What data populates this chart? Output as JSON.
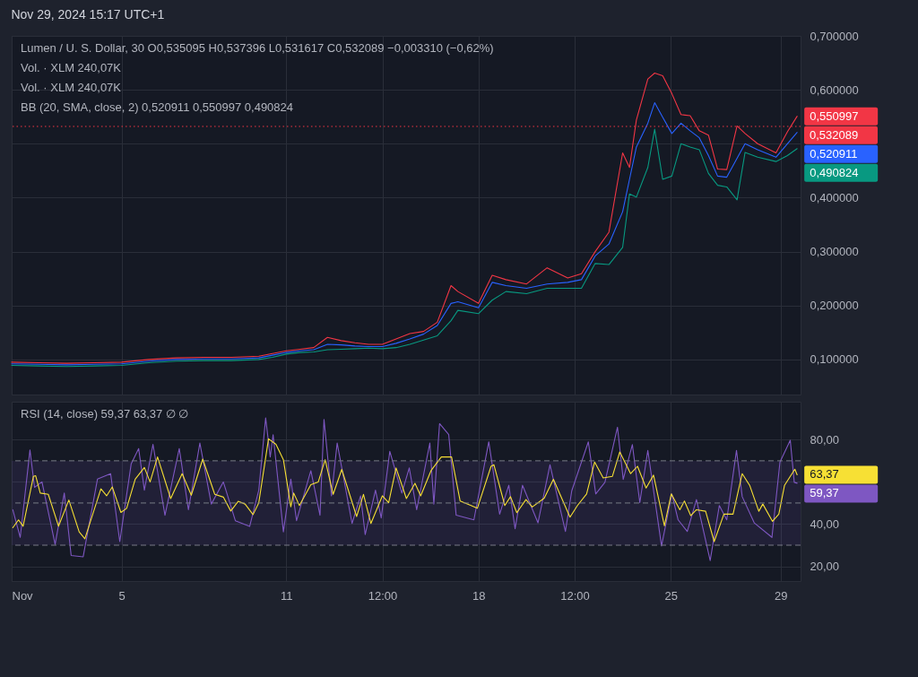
{
  "chart_data": [
    {
      "type": "line",
      "title": "Nov 29, 2024 15:17 UTC+1",
      "annotations": [
        "Lumen / U. S. Dollar, 30  O0,535095  H0,537396  L0,531617  C0,532089  −0,003310 (−0,62%)",
        "Vol. · XLM  240,07K",
        "Vol. · XLM  240,07K",
        "BB (20, SMA, close, 2)  0,520911  0,550997  0,490824",
        {
          "text": "0,550997",
          "x": "2024-11-29T14:30",
          "y": 0.550997
        },
        {
          "text": "0,520911",
          "x": "2024-11-29T14:30",
          "y": 0.520911
        },
        {
          "text": "0,490824",
          "x": "2024-11-29T14:30",
          "y": 0.490824
        }
      ],
      "x": [
        "2024-11-01T00:00",
        "2024-11-02T00:00",
        "2024-11-03T00:00",
        "2024-11-04T00:00",
        "2024-11-05T00:00",
        "2024-11-06T00:00",
        "2024-11-07T00:00",
        "2024-11-08T00:00",
        "2024-11-09T00:00",
        "2024-11-10T00:00",
        "2024-11-10T12:00",
        "2024-11-11T00:00",
        "2024-11-11T12:00",
        "2024-11-12T00:00",
        "2024-11-12T12:00",
        "2024-11-13T00:00",
        "2024-11-13T12:00",
        "2024-11-14T00:00",
        "2024-11-14T12:00",
        "2024-11-15T00:00",
        "2024-11-15T12:00",
        "2024-11-16T00:00",
        "2024-11-16T12:00",
        "2024-11-17T00:00",
        "2024-11-17T06:00",
        "2024-11-18T00:00",
        "2024-11-18T12:00",
        "2024-11-19T00:00",
        "2024-11-19T18:00",
        "2024-11-20T12:00",
        "2024-11-21T06:00",
        "2024-11-21T18:00",
        "2024-11-22T06:00",
        "2024-11-22T18:00",
        "2024-11-23T06:00",
        "2024-11-23T12:00",
        "2024-11-23T18:00",
        "2024-11-24T04:00",
        "2024-11-24T10:00",
        "2024-11-24T17:00",
        "2024-11-25T01:00",
        "2024-11-25T09:00",
        "2024-11-25T17:00",
        "2024-11-26T01:00",
        "2024-11-26T09:00",
        "2024-11-26T17:00",
        "2024-11-27T01:00",
        "2024-11-27T10:00",
        "2024-11-27T17:00",
        "2024-11-28T04:00",
        "2024-11-28T20:00",
        "2024-11-29T06:00",
        "2024-11-29T14:30"
      ],
      "series": [
        {
          "color": "#2962ff",
          "values": [
            0.092,
            0.091,
            0.09,
            0.091,
            0.092,
            0.097,
            0.1,
            0.101,
            0.101,
            0.103,
            0.108,
            0.113,
            0.116,
            0.118,
            0.128,
            0.127,
            0.125,
            0.124,
            0.124,
            0.13,
            0.138,
            0.147,
            0.163,
            0.204,
            0.207,
            0.196,
            0.243,
            0.237,
            0.232,
            0.24,
            0.243,
            0.248,
            0.292,
            0.314,
            0.374,
            0.434,
            0.494,
            0.538,
            0.576,
            0.549,
            0.519,
            0.538,
            0.524,
            0.511,
            0.478,
            0.44,
            0.438,
            0.473,
            0.5,
            0.489,
            0.475,
            0.5,
            0.520911
          ]
        },
        {
          "color": "#f23645",
          "values": [
            0.095,
            0.094,
            0.093,
            0.094,
            0.095,
            0.1,
            0.103,
            0.104,
            0.104,
            0.106,
            0.111,
            0.116,
            0.119,
            0.122,
            0.141,
            0.135,
            0.131,
            0.128,
            0.128,
            0.138,
            0.148,
            0.152,
            0.169,
            0.237,
            0.226,
            0.204,
            0.256,
            0.248,
            0.24,
            0.27,
            0.251,
            0.259,
            0.3,
            0.336,
            0.483,
            0.456,
            0.544,
            0.62,
            0.631,
            0.626,
            0.593,
            0.554,
            0.552,
            0.524,
            0.516,
            0.453,
            0.452,
            0.533,
            0.519,
            0.5,
            0.483,
            0.522,
            0.550997
          ]
        },
        {
          "color": "#089981",
          "values": [
            0.089,
            0.088,
            0.087,
            0.088,
            0.089,
            0.094,
            0.097,
            0.098,
            0.098,
            0.1,
            0.104,
            0.11,
            0.113,
            0.114,
            0.118,
            0.119,
            0.12,
            0.121,
            0.12,
            0.122,
            0.128,
            0.136,
            0.144,
            0.172,
            0.191,
            0.185,
            0.21,
            0.226,
            0.222,
            0.232,
            0.232,
            0.232,
            0.278,
            0.276,
            0.308,
            0.407,
            0.401,
            0.456,
            0.527,
            0.434,
            0.44,
            0.5,
            0.494,
            0.489,
            0.445,
            0.423,
            0.42,
            0.396,
            0.484,
            0.475,
            0.467,
            0.478,
            0.490824
          ]
        }
      ],
      "ref_lines": [
        {
          "axis": "y",
          "value": 0.532089,
          "label": "0,532089",
          "color": "#f23645",
          "line_style": "dotted"
        }
      ],
      "xlim": [
        "2024-11-01T00:00",
        "2024-11-29T17:30"
      ],
      "xticks": [
        {
          "value": "2024-11-01T00:00",
          "label": null
        },
        {
          "value": "2024-11-05T00:00",
          "label": null
        },
        {
          "value": "2024-11-11T00:00",
          "label": null
        },
        {
          "value": "2024-11-14T12:00",
          "label": null
        },
        {
          "value": "2024-11-18T00:00",
          "label": null
        },
        {
          "value": "2024-11-21T12:00",
          "label": null
        },
        {
          "value": "2024-11-25T00:00",
          "label": null
        },
        {
          "value": "2024-11-29T00:00",
          "label": null
        }
      ],
      "ylim": [
        0.035,
        0.7
      ],
      "yticks": [
        {
          "value": 0.1,
          "label": "0,100000"
        },
        {
          "value": 0.2,
          "label": "0,200000"
        },
        {
          "value": 0.3,
          "label": "0,300000"
        },
        {
          "value": 0.4,
          "label": "0,400000"
        },
        {
          "value": 0.5,
          "label": null
        },
        {
          "value": 0.6,
          "label": "0,600000"
        },
        {
          "value": 0.7,
          "label": "0,700000"
        }
      ],
      "grid": true,
      "tick_labels": "y"
    },
    {
      "type": "line",
      "annotations": [
        "RSI (14, close)  59,37  63,37  ∅  ∅",
        {
          "text": "63,37",
          "x": "2024-11-29T14:30",
          "y": 63.37
        },
        {
          "text": "59,37",
          "x": "2024-11-29T14:30",
          "y": 59.37
        }
      ],
      "series": [
        {
          "color": "#7e57c2",
          "x": [
            "2024-11-01T01:00",
            "2024-11-01T07:30",
            "2024-11-01T16:00",
            "2024-11-01T20:00",
            "2024-11-02T02:30",
            "2024-11-02T14:00",
            "2024-11-02T22:00",
            "2024-11-03T04:00",
            "2024-11-03T14:30",
            "2024-11-04T03:00",
            "2024-11-04T14:30",
            "2024-11-04T22:30",
            "2024-11-05T08:30",
            "2024-11-05T15:00",
            "2024-11-05T20:00",
            "2024-11-06T03:30",
            "2024-11-06T14:00",
            "2024-11-07T02:30",
            "2024-11-07T10:30",
            "2024-11-07T20:30",
            "2024-11-08T06:30",
            "2024-11-08T17:00",
            "2024-11-09T03:30",
            "2024-11-09T16:00",
            "2024-11-10T00:00",
            "2024-11-10T06:00",
            "2024-11-10T10:00",
            "2024-11-10T12:30",
            "2024-11-10T21:30",
            "2024-11-11T04:00",
            "2024-11-11T09:00",
            "2024-11-11T21:30",
            "2024-11-12T05:30",
            "2024-11-12T09:00",
            "2024-11-12T15:30",
            "2024-11-12T20:30",
            "2024-11-13T09:30",
            "2024-11-13T17:00",
            "2024-11-13T21:00",
            "2024-11-14T06:00",
            "2024-11-14T11:00",
            "2024-11-14T18:30",
            "2024-11-15T05:00",
            "2024-11-15T11:30",
            "2024-11-15T18:00",
            "2024-11-16T05:30",
            "2024-11-16T09:00",
            "2024-11-16T14:00",
            "2024-11-16T22:00",
            "2024-11-17T04:30",
            "2024-11-17T20:00",
            "2024-11-18T09:00",
            "2024-11-18T18:30",
            "2024-11-19T02:30",
            "2024-11-19T08:00",
            "2024-11-19T14:30",
            "2024-11-20T04:00",
            "2024-11-20T14:30",
            "2024-11-21T04:00",
            "2024-11-21T09:30",
            "2024-11-22T00:00",
            "2024-11-22T06:30",
            "2024-11-22T14:30",
            "2024-11-23T01:30",
            "2024-11-23T06:30",
            "2024-11-23T14:30",
            "2024-11-23T21:00",
            "2024-11-24T04:00",
            "2024-11-24T16:00",
            "2024-11-25T01:00",
            "2024-11-25T06:30",
            "2024-11-25T14:30",
            "2024-11-25T22:30",
            "2024-11-26T10:30",
            "2024-11-26T18:30",
            "2024-11-27T01:00",
            "2024-11-27T09:30",
            "2024-11-27T14:30",
            "2024-11-28T01:00",
            "2024-11-28T16:30",
            "2024-11-28T23:30",
            "2024-11-29T08:30",
            "2024-11-29T12:00",
            "2024-11-29T14:30"
          ],
          "values": [
            46.8,
            33.7,
            75.1,
            57.4,
            60.0,
            30.4,
            54.7,
            25.1,
            24.5,
            61.3,
            63.9,
            31.7,
            68.6,
            75.8,
            56.1,
            77.8,
            44.2,
            75.8,
            46.8,
            78.4,
            49.5,
            60.0,
            41.6,
            38.9,
            56.1,
            90.3,
            71.8,
            82.4,
            36.3,
            61.3,
            41.6,
            65.3,
            44.2,
            89.6,
            53.4,
            78.4,
            40.3,
            53.4,
            35.0,
            56.1,
            42.9,
            74.5,
            54.7,
            66.6,
            46.8,
            78.4,
            49.5,
            87.6,
            82.4,
            44.2,
            42.0,
            79.0,
            44.7,
            58.4,
            37.8,
            58.4,
            40.6,
            68.1,
            36.5,
            55.7,
            79.0,
            54.3,
            59.8,
            85.9,
            61.2,
            77.7,
            50.2,
            74.9,
            29.6,
            54.3,
            42.0,
            36.5,
            51.6,
            22.7,
            48.8,
            42.0,
            74.9,
            53.0,
            40.6,
            33.7,
            69.4,
            79.7,
            59.8,
            59.37
          ]
        },
        {
          "color": "#f7e034",
          "x": [
            "2024-11-01T01:00",
            "2024-11-01T06:00",
            "2024-11-01T10:00",
            "2024-11-01T19:00",
            "2024-11-01T21:00",
            "2024-11-02T01:00",
            "2024-11-02T08:00",
            "2024-11-02T17:00",
            "2024-11-03T02:00",
            "2024-11-03T11:00",
            "2024-11-03T16:00",
            "2024-11-04T06:00",
            "2024-11-04T11:00",
            "2024-11-04T16:00",
            "2024-11-04T23:30",
            "2024-11-05T04:30",
            "2024-11-05T12:00",
            "2024-11-05T20:00",
            "2024-11-06T01:00",
            "2024-11-06T07:30",
            "2024-11-06T19:00",
            "2024-11-07T05:00",
            "2024-11-07T13:00",
            "2024-11-07T23:00",
            "2024-11-08T09:30",
            "2024-11-08T17:00",
            "2024-11-08T23:30",
            "2024-11-09T06:00",
            "2024-11-09T12:00",
            "2024-11-09T19:00",
            "2024-11-10T00:00",
            "2024-11-10T08:30",
            "2024-11-10T15:00",
            "2024-11-10T21:30",
            "2024-11-11T04:00",
            "2024-11-11T06:30",
            "2024-11-11T11:30",
            "2024-11-11T21:30",
            "2024-11-12T04:00",
            "2024-11-12T10:00",
            "2024-11-12T17:00",
            "2024-11-13T00:30",
            "2024-11-13T13:30",
            "2024-11-13T19:30",
            "2024-11-14T02:00",
            "2024-11-14T12:00",
            "2024-11-14T17:30",
            "2024-11-15T00:00",
            "2024-11-15T09:00",
            "2024-11-15T16:30",
            "2024-11-15T21:30",
            "2024-11-16T06:30",
            "2024-11-16T15:30",
            "2024-11-17T00:30",
            "2024-11-17T08:00",
            "2024-11-17T17:30",
            "2024-11-17T23:00",
            "2024-11-18T11:00",
            "2024-11-18T13:30",
            "2024-11-18T23:00",
            "2024-11-19T04:00",
            "2024-11-19T09:30",
            "2024-11-19T17:30",
            "2024-11-19T23:00",
            "2024-11-20T09:30",
            "2024-11-20T17:30",
            "2024-11-21T08:00",
            "2024-11-21T14:30",
            "2024-11-21T22:30",
            "2024-11-22T05:30",
            "2024-11-22T13:00",
            "2024-11-22T21:00",
            "2024-11-23T03:30",
            "2024-11-23T13:00",
            "2024-11-23T19:00",
            "2024-11-24T02:30",
            "2024-11-24T09:00",
            "2024-11-24T18:30",
            "2024-11-25T00:30",
            "2024-11-25T08:00",
            "2024-11-25T12:00",
            "2024-11-25T17:30",
            "2024-11-25T22:30",
            "2024-11-26T06:30",
            "2024-11-26T14:00",
            "2024-11-26T22:30",
            "2024-11-27T06:30",
            "2024-11-27T14:30",
            "2024-11-27T21:00",
            "2024-11-28T05:00",
            "2024-11-28T08:30",
            "2024-11-28T17:00",
            "2024-11-28T22:30",
            "2024-11-29T03:30",
            "2024-11-29T12:30",
            "2024-11-29T14:30"
          ],
          "values": [
            38.3,
            42.0,
            39.0,
            62.6,
            62.9,
            54.7,
            54.1,
            39.0,
            51.4,
            36.3,
            33.0,
            56.7,
            53.4,
            57.6,
            45.5,
            47.5,
            61.3,
            66.8,
            60.0,
            71.8,
            52.1,
            63.9,
            53.7,
            70.8,
            54.1,
            52.8,
            46.2,
            50.8,
            49.5,
            44.5,
            50.1,
            80.4,
            77.8,
            70.5,
            48.2,
            54.7,
            48.8,
            58.7,
            60.0,
            70.5,
            54.1,
            65.9,
            43.6,
            54.1,
            40.3,
            53.4,
            50.1,
            66.6,
            52.1,
            59.3,
            53.4,
            65.3,
            71.8,
            71.8,
            50.9,
            48.8,
            47.5,
            67.4,
            68.1,
            48.8,
            53.0,
            45.4,
            51.6,
            48.1,
            52.3,
            61.2,
            43.3,
            48.8,
            54.3,
            69.4,
            61.9,
            62.6,
            74.2,
            63.9,
            67.4,
            57.1,
            63.2,
            39.2,
            54.3,
            46.8,
            50.9,
            44.0,
            46.8,
            46.1,
            31.7,
            44.7,
            44.7,
            63.9,
            58.4,
            46.1,
            49.5,
            41.3,
            44.7,
            58.4,
            66.0,
            63.37
          ]
        }
      ],
      "ref_lines": [
        {
          "axis": "y",
          "value": 70,
          "color": "#787b86",
          "line_style": "dashed"
        },
        {
          "axis": "y",
          "value": 50,
          "color": "#787b86",
          "line_style": "dashed"
        },
        {
          "axis": "y",
          "value": 30,
          "color": "#787b86",
          "line_style": "dashed"
        }
      ],
      "bands": [
        {
          "axis": "y",
          "from": 30,
          "to": 70,
          "color": "#7e57c2"
        }
      ],
      "xlim": [
        "2024-11-01T00:00",
        "2024-11-29T17:30"
      ],
      "xticks": [
        {
          "value": "2024-11-01T00:00",
          "label": "Nov"
        },
        {
          "value": "2024-11-05T00:00",
          "label": "5"
        },
        {
          "value": "2024-11-11T00:00",
          "label": "11"
        },
        {
          "value": "2024-11-14T12:00",
          "label": "12:00"
        },
        {
          "value": "2024-11-18T00:00",
          "label": "18"
        },
        {
          "value": "2024-11-21T12:00",
          "label": "12:00"
        },
        {
          "value": "2024-11-25T00:00",
          "label": "25"
        },
        {
          "value": "2024-11-29T00:00",
          "label": "29"
        }
      ],
      "ylim": [
        13,
        98
      ],
      "yticks": [
        {
          "value": 20,
          "label": "20,00"
        },
        {
          "value": 40,
          "label": "40,00"
        },
        {
          "value": 60,
          "label": null
        },
        {
          "value": 80,
          "label": "80,00"
        }
      ],
      "grid": true
    }
  ]
}
